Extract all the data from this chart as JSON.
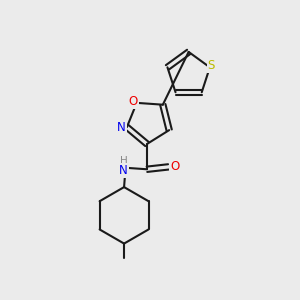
{
  "background_color": "#ebebeb",
  "bond_color": "#1a1a1a",
  "atom_colors": {
    "N": "#0000ee",
    "O": "#ee0000",
    "S": "#bbbb00",
    "H": "#888888",
    "C": "#1a1a1a"
  },
  "lw": 1.5,
  "fontsize": 8.5,
  "xlim": [
    0,
    10
  ],
  "ylim": [
    0,
    10
  ]
}
